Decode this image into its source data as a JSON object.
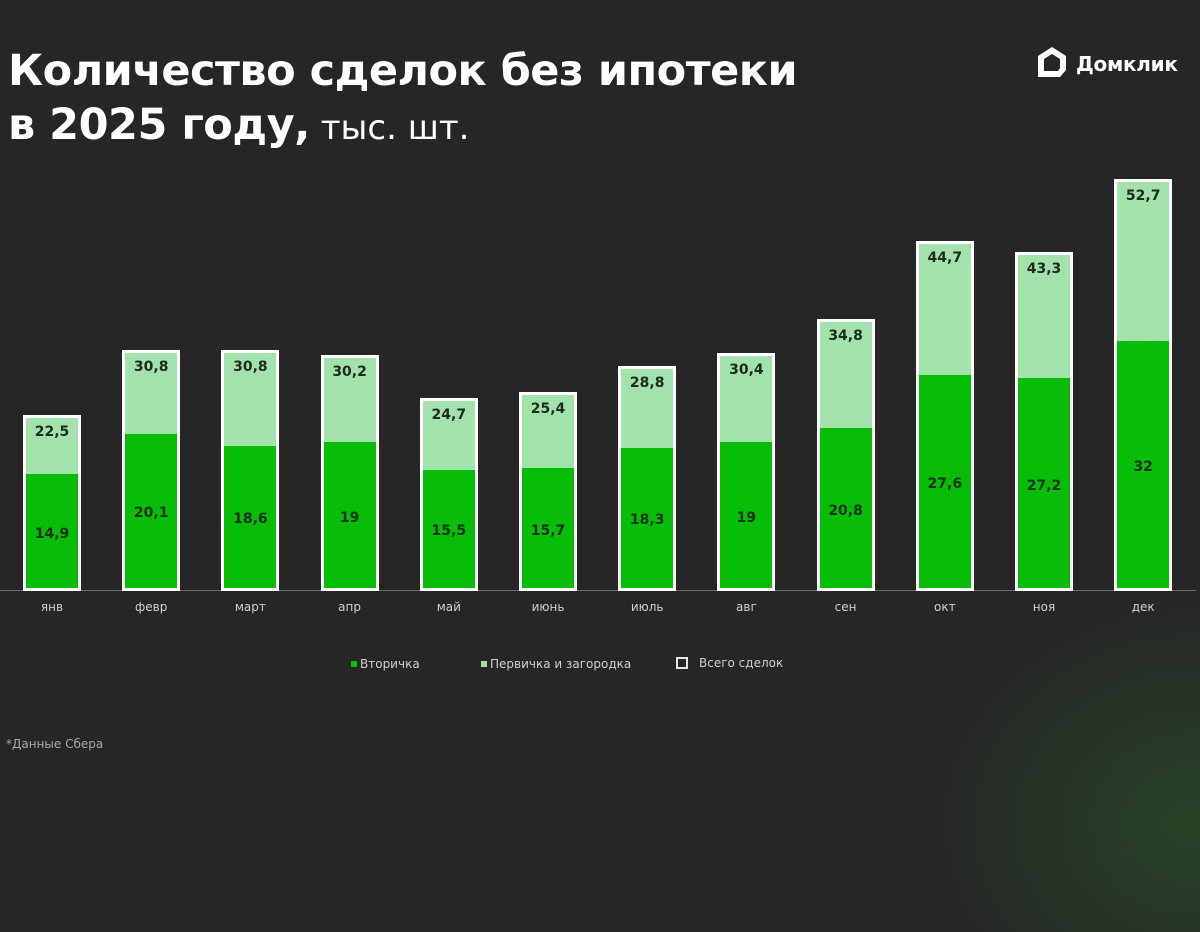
{
  "header": {
    "title_line1": "Количество сделок без ипотеки",
    "title_line2_bold": "в 2025 году,",
    "title_unit": " тыс. шт."
  },
  "brand": {
    "name": "Домклик",
    "icon": "house-logo-icon"
  },
  "footnote": "*Данные Сбера",
  "colors": {
    "background": "#262626",
    "secondary": "#07bd07",
    "primary_suburban": "#a2e3ac",
    "total_outline": "#ffffff"
  },
  "legend": {
    "items": [
      {
        "label": "Вторичка",
        "color": "#07bd07"
      },
      {
        "label": "Первичка и загородка",
        "color": "#a2e3ac"
      },
      {
        "label": "Всего сделок",
        "color": "outline"
      }
    ]
  },
  "chart_data": {
    "type": "bar",
    "stacked": true,
    "title": "Количество сделок без ипотеки в 2025 году, тыс. шт.",
    "xlabel": "",
    "ylabel": "тыс. шт.",
    "ylim": [
      0,
      55
    ],
    "grid": false,
    "legend_position": "bottom",
    "categories": [
      "янв",
      "февр",
      "март",
      "апр",
      "май",
      "июнь",
      "июль",
      "авг",
      "сен",
      "окт",
      "ноя",
      "дек"
    ],
    "categories_display": [
      "янв",
      "февр",
      "март",
      "апр",
      "май",
      "июнь",
      "июль",
      "авг",
      "сен",
      "окт",
      "ноя",
      "дек"
    ],
    "series": [
      {
        "name": "Вторичка",
        "values": [
          14.9,
          20.1,
          18.6,
          19,
          15.5,
          15.7,
          18.3,
          19,
          20.8,
          27.6,
          27.2,
          32
        ],
        "labels": [
          "14,9",
          "20,1",
          "18,6",
          "19",
          "15,5",
          "15,7",
          "18,3",
          "19",
          "20,8",
          "27,6",
          "27,2",
          "32"
        ]
      },
      {
        "name": "Первичка и загородка",
        "values": [
          7.6,
          10.7,
          12.2,
          11.2,
          9.2,
          9.7,
          10.5,
          11.4,
          14.0,
          17.1,
          16.1,
          20.7
        ]
      },
      {
        "name": "Всего сделок",
        "values": [
          22.5,
          30.8,
          30.8,
          30.2,
          24.7,
          25.4,
          28.8,
          30.4,
          34.8,
          44.7,
          43.3,
          52.7
        ],
        "labels": [
          "22,5",
          "30,8",
          "30,8",
          "30,2",
          "24,7",
          "25,4",
          "28,8",
          "30,4",
          "34,8",
          "44,7",
          "43,3",
          "52,7"
        ]
      }
    ]
  }
}
